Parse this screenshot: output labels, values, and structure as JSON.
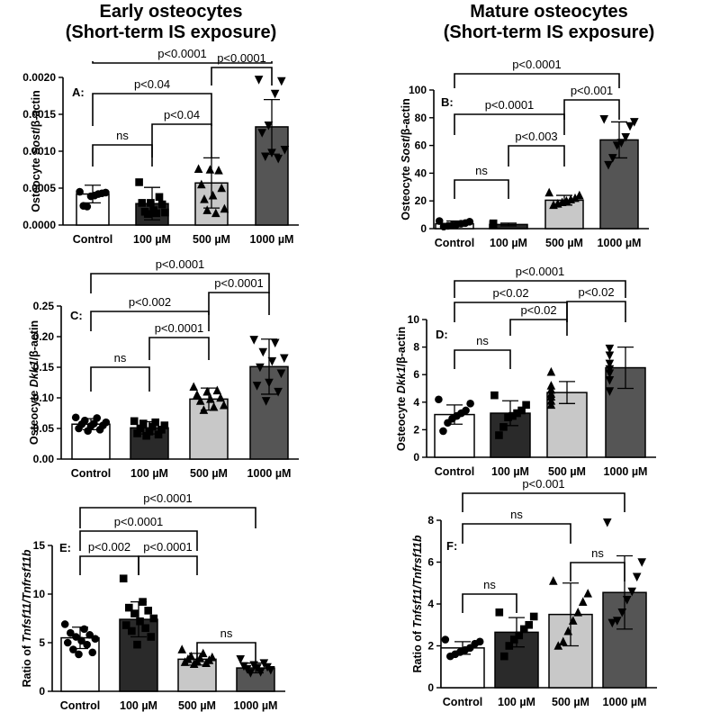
{
  "titles": {
    "left_line1": "Early osteocytes",
    "left_line2": "(Short-term IS exposure)",
    "right_line1": "Mature osteocytes",
    "right_line2": "(Short-term IS exposure)"
  },
  "colors": {
    "control": "#ffffff",
    "100uM": "#2a2a2a",
    "500uM": "#c8c8c8",
    "1000uM": "#555555",
    "frame": "#000000"
  },
  "chart_data": [
    {
      "type": "bar",
      "panel_label": "A:",
      "ylabel": {
        "prefix": "Osteocyte ",
        "gene": "Sost",
        "suffix": "/β-actin"
      },
      "categories": [
        "Control",
        "100 µM",
        "500 µM",
        "1000 µM"
      ],
      "values": [
        0.00042,
        0.00029,
        0.00057,
        0.00133
      ],
      "errors": [
        0.00012,
        0.00022,
        0.00034,
        0.00037
      ],
      "yticks": [
        "0.0000",
        "0.0005",
        "0.0010",
        "0.0015",
        "0.0020"
      ],
      "ylim": [
        0,
        0.002
      ],
      "points": [
        [
          0.00045,
          0.00044,
          0.00043,
          0.00042,
          0.0004,
          0.00039,
          0.00025,
          0.00026
        ],
        [
          0.00058,
          0.00038,
          0.0003,
          0.0003,
          0.00028,
          0.0002,
          0.00018,
          0.00017,
          0.00016,
          0.00015
        ],
        [
          0.00076,
          0.00074,
          0.00075,
          0.00055,
          0.0005,
          0.0004,
          0.00035,
          0.00022,
          0.00016,
          0.0002
        ],
        [
          0.00197,
          0.00195,
          0.00178,
          0.00135,
          0.00125,
          0.00102,
          0.0009,
          0.00098,
          0.00093
        ]
      ],
      "comparisons": [
        {
          "from": 0,
          "to": 1,
          "label": "ns"
        },
        {
          "from": 1,
          "to": 2,
          "label": "p<0.04"
        },
        {
          "from": 0,
          "to": 2,
          "label": "p<0.04"
        },
        {
          "from": 2,
          "to": 3,
          "label": "p<0.0001"
        },
        {
          "from": 0,
          "to": 3,
          "label": "p<0.0001"
        }
      ]
    },
    {
      "type": "bar",
      "panel_label": "B:",
      "ylabel": {
        "prefix": "Osteocyte ",
        "gene": "Sost",
        "suffix": "/β-actin"
      },
      "categories": [
        "Control",
        "100 µM",
        "500 µM",
        "1000 µM"
      ],
      "values": [
        3.5,
        3,
        20.5,
        64
      ],
      "errors": [
        2,
        1,
        3.5,
        13
      ],
      "yticks": [
        "0",
        "20",
        "40",
        "60",
        "80",
        "100"
      ],
      "ylim": [
        0,
        100
      ],
      "points": [
        [
          5.5,
          5,
          4,
          3.5,
          3,
          2.5,
          2,
          1.5
        ],
        [
          3.8,
          3.5,
          3.2,
          3,
          2.8,
          2.6,
          2.5
        ],
        [
          26,
          24,
          22,
          21,
          20,
          19,
          18,
          17
        ],
        [
          79,
          77,
          74,
          66,
          62,
          60,
          51,
          46
        ]
      ],
      "comparisons": [
        {
          "from": 0,
          "to": 1,
          "label": "ns"
        },
        {
          "from": 1,
          "to": 2,
          "label": "p<0.003"
        },
        {
          "from": 0,
          "to": 2,
          "label": "p<0.0001"
        },
        {
          "from": 2,
          "to": 3,
          "label": "p<0.001"
        },
        {
          "from": 0,
          "to": 3,
          "label": "p<0.0001"
        }
      ]
    },
    {
      "type": "bar",
      "panel_label": "C:",
      "ylabel": {
        "prefix": "Osteocyte ",
        "gene": "Dkk1",
        "suffix": "/β-actin"
      },
      "categories": [
        "Control",
        "100 µM",
        "500 µM",
        "1000 µM"
      ],
      "values": [
        0.057,
        0.051,
        0.098,
        0.151
      ],
      "errors": [
        0.009,
        0.01,
        0.018,
        0.045
      ],
      "yticks": [
        "0.00",
        "0.05",
        "0.10",
        "0.15",
        "0.20",
        "0.25"
      ],
      "ylim": [
        0,
        0.25
      ],
      "points": [
        [
          0.068,
          0.067,
          0.063,
          0.06,
          0.058,
          0.057,
          0.055,
          0.054,
          0.05,
          0.048,
          0.046
        ],
        [
          0.062,
          0.06,
          0.058,
          0.055,
          0.053,
          0.05,
          0.048,
          0.045,
          0.042,
          0.04,
          0.038
        ],
        [
          0.118,
          0.112,
          0.11,
          0.105,
          0.1,
          0.098,
          0.095,
          0.088,
          0.085,
          0.08
        ],
        [
          0.195,
          0.19,
          0.175,
          0.165,
          0.16,
          0.15,
          0.14,
          0.125,
          0.12,
          0.11,
          0.095
        ]
      ],
      "comparisons": [
        {
          "from": 0,
          "to": 1,
          "label": "ns"
        },
        {
          "from": 1,
          "to": 2,
          "label": "p<0.0001"
        },
        {
          "from": 0,
          "to": 2,
          "label": "p<0.002"
        },
        {
          "from": 2,
          "to": 3,
          "label": "p<0.0001"
        },
        {
          "from": 0,
          "to": 3,
          "label": "p<0.0001"
        }
      ]
    },
    {
      "type": "bar",
      "panel_label": "D:",
      "ylabel": {
        "prefix": "Osteocyte ",
        "gene": "Dkk1",
        "suffix": "/β-actin"
      },
      "categories": [
        "Control",
        "100 µM",
        "500 µM",
        "1000 µM"
      ],
      "values": [
        3.1,
        3.2,
        4.7,
        6.5
      ],
      "errors": [
        0.7,
        0.9,
        0.8,
        1.5
      ],
      "yticks": [
        "0",
        "2",
        "4",
        "6",
        "8",
        "10"
      ],
      "ylim": [
        0,
        10
      ],
      "points": [
        [
          4.2,
          3.9,
          3.4,
          3.2,
          3.0,
          2.8,
          2.5,
          1.9
        ],
        [
          4.5,
          3.8,
          3.4,
          3.2,
          3.0,
          2.9,
          2.2,
          1.6
        ],
        [
          6.2,
          5.2,
          4.9,
          4.6,
          4.4,
          4.1,
          3.8
        ],
        [
          7.9,
          7.4,
          6.8,
          6.4,
          6.1,
          5.6,
          4.8
        ]
      ],
      "comparisons": [
        {
          "from": 0,
          "to": 1,
          "label": "ns"
        },
        {
          "from": 1,
          "to": 2,
          "label": "p<0.02"
        },
        {
          "from": 0,
          "to": 2,
          "label": "p<0.02"
        },
        {
          "from": 2,
          "to": 3,
          "label": "p<0.02"
        },
        {
          "from": 0,
          "to": 3,
          "label": "p<0.0001"
        }
      ]
    },
    {
      "type": "bar",
      "panel_label": "E:",
      "ylabel": {
        "prefix": "Ratio of ",
        "gene": "Tnfsf11/Tnfrsf11b",
        "suffix": ""
      },
      "categories": [
        "Control",
        "100 µM",
        "500 µM",
        "1000 µM"
      ],
      "values": [
        5.5,
        7.4,
        3.3,
        2.4
      ],
      "errors": [
        1.1,
        1.8,
        0.6,
        0.5
      ],
      "yticks": [
        "0",
        "5",
        "10",
        "15"
      ],
      "ylim": [
        0,
        15
      ],
      "points": [
        [
          6.9,
          6.4,
          6.0,
          5.8,
          5.6,
          5.4,
          5.2,
          5.0,
          4.8,
          4.3,
          4.0,
          3.8
        ],
        [
          11.6,
          9.2,
          8.6,
          8.3,
          8.0,
          7.5,
          7.2,
          6.8,
          6.5,
          6.2,
          5.6,
          4.8
        ],
        [
          4.3,
          3.9,
          3.6,
          3.5,
          3.4,
          3.3,
          3.2,
          3.1,
          3.0,
          2.9,
          2.8
        ],
        [
          3.3,
          2.9,
          2.7,
          2.6,
          2.5,
          2.4,
          2.3,
          2.2,
          2.0,
          1.9
        ]
      ],
      "comparisons": [
        {
          "from": 2,
          "to": 3,
          "label": "ns"
        },
        {
          "from": 0,
          "to": 1,
          "label": "p<0.002"
        },
        {
          "from": 1,
          "to": 2,
          "label": "p<0.0001"
        },
        {
          "from": 0,
          "to": 2,
          "label": "p<0.0001"
        },
        {
          "from": 0,
          "to": 3,
          "label": "p<0.0001"
        }
      ]
    },
    {
      "type": "bar",
      "panel_label": "F:",
      "ylabel": {
        "prefix": "Ratio of ",
        "gene": "Tnfsf11/Tnfrsf11b",
        "suffix": ""
      },
      "categories": [
        "Control",
        "100 µM",
        "500 µM",
        "1000 µM"
      ],
      "values": [
        1.9,
        2.65,
        3.5,
        4.55
      ],
      "errors": [
        0.3,
        0.7,
        1.5,
        1.75
      ],
      "yticks": [
        "0",
        "2",
        "4",
        "6",
        "8"
      ],
      "ylim": [
        0,
        8
      ],
      "points": [
        [
          2.3,
          2.2,
          2.1,
          1.9,
          1.8,
          1.7,
          1.6,
          1.5
        ],
        [
          3.6,
          3.4,
          3.0,
          2.8,
          2.5,
          2.3,
          2.0,
          1.5
        ],
        [
          5.1,
          4.5,
          4.1,
          3.6,
          3.2,
          2.7,
          2.2,
          2.0
        ],
        [
          7.9,
          6.0,
          5.3,
          4.6,
          4.2,
          3.6,
          3.2,
          3.1
        ]
      ],
      "comparisons": [
        {
          "from": 0,
          "to": 1,
          "label": "ns"
        },
        {
          "from": 2,
          "to": 3,
          "label": "ns"
        },
        {
          "from": 0,
          "to": 2,
          "label": "ns"
        },
        {
          "from": 0,
          "to": 3,
          "label": "p<0.001"
        }
      ]
    }
  ]
}
